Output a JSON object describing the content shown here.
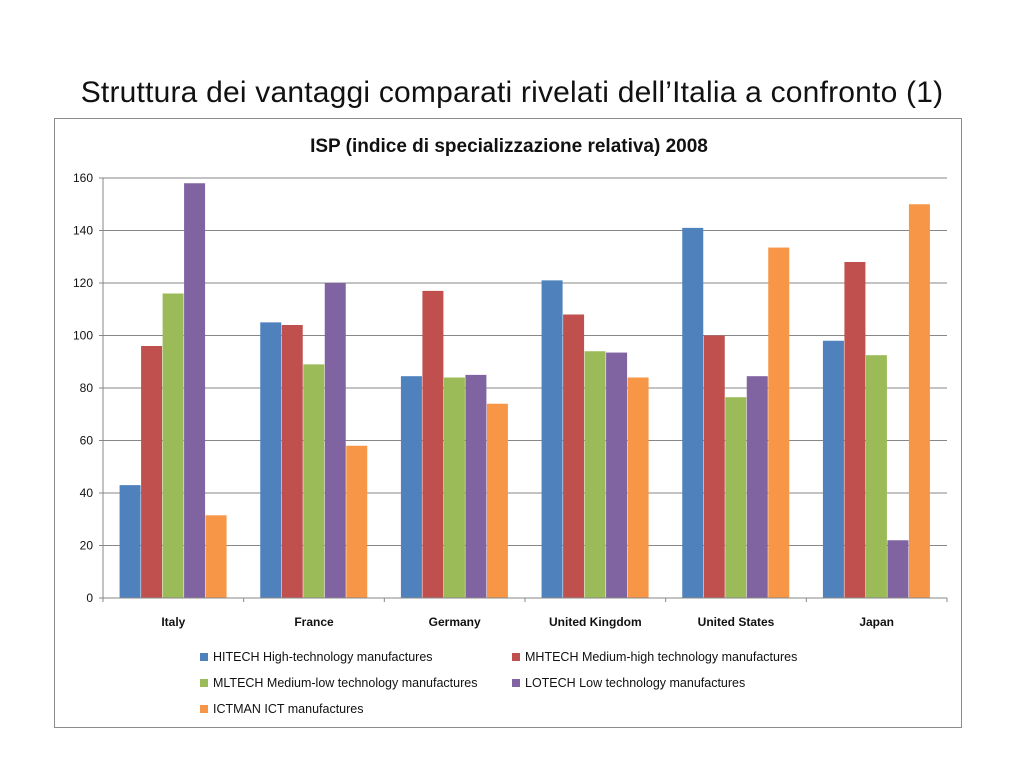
{
  "slide": {
    "title": "Struttura dei vantaggi comparati rivelati dell’Italia a confronto (1)"
  },
  "chart_data": {
    "type": "bar",
    "title": "ISP  (indice di specializzazione relativa)  2008",
    "xlabel": "",
    "ylabel": "",
    "ylim": [
      0,
      160
    ],
    "yticks": [
      0,
      20,
      40,
      60,
      80,
      100,
      120,
      140,
      160
    ],
    "grid": true,
    "legend_position": "bottom",
    "categories": [
      "Italy",
      "France",
      "Germany",
      "United Kingdom",
      "United States",
      "Japan"
    ],
    "series": [
      {
        "name": "HITECH High-technology manufactures",
        "color": "#4f81bd",
        "values": [
          43,
          105,
          84.5,
          121,
          141,
          98
        ]
      },
      {
        "name": "MHTECH Medium-high technology manufactures",
        "color": "#c0504d",
        "values": [
          96,
          104,
          117,
          108,
          100,
          128
        ]
      },
      {
        "name": "MLTECH Medium-low technology manufactures",
        "color": "#9bbb59",
        "values": [
          116,
          89,
          84,
          94,
          76.5,
          92.5
        ]
      },
      {
        "name": "LOTECH Low technology manufactures",
        "color": "#8064a2",
        "values": [
          158,
          120,
          85,
          93.5,
          84.5,
          22
        ]
      },
      {
        "name": "ICTMAN ICT manufactures",
        "color": "#f79646",
        "values": [
          31.5,
          58,
          74,
          84,
          133.5,
          150
        ]
      }
    ]
  }
}
